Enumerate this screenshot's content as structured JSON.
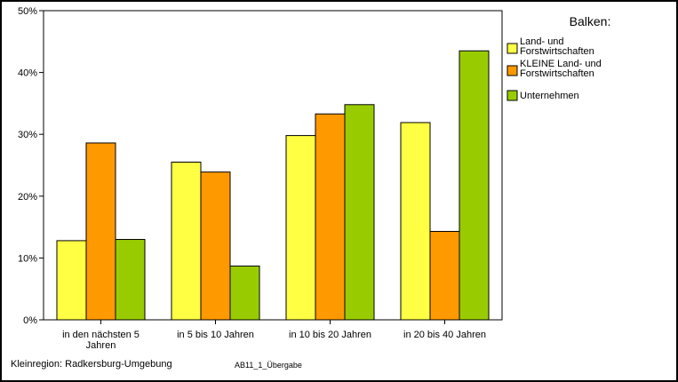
{
  "chart_data": {
    "type": "bar",
    "title": "",
    "xlabel": "",
    "ylabel": "",
    "ylim": [
      0,
      50
    ],
    "yticks": [
      "0%",
      "10%",
      "20%",
      "30%",
      "40%",
      "50%"
    ],
    "categories": [
      [
        "in den nächsten 5",
        "Jahren"
      ],
      [
        "in 5 bis 10 Jahren"
      ],
      [
        "in 10 bis 20 Jahren"
      ],
      [
        "in 20 bis 40 Jahren"
      ]
    ],
    "series": [
      {
        "name": [
          "Land- und",
          "Forstwirtschaften"
        ],
        "color": "#ffff44",
        "values": [
          12.8,
          25.5,
          29.8,
          31.9
        ]
      },
      {
        "name": [
          "KLEINE Land- und",
          "Forstwirtschaften"
        ],
        "color": "#ff9900",
        "values": [
          28.6,
          23.9,
          33.3,
          14.3
        ]
      },
      {
        "name": [
          "Unternehmen"
        ],
        "color": "#99cc00",
        "values": [
          13.0,
          8.7,
          34.8,
          43.5
        ]
      }
    ],
    "legend": {
      "title": "Balken:",
      "position": "right"
    },
    "grid": false
  },
  "footer": {
    "region": "Kleinregion: Radkersburg-Umgebung",
    "code": "AB11_1_Übergabe"
  }
}
